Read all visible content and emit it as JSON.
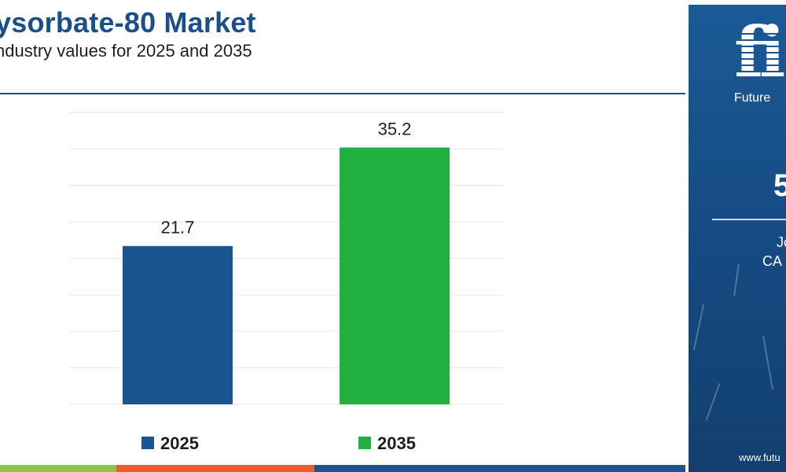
{
  "header": {
    "title": "ysorbate-80 Market",
    "subtitle": "ndustry values for 2025 and 2035"
  },
  "colors": {
    "title": "#1a4f8a",
    "bar_2025": "#1a5592",
    "bar_2035": "#22b041",
    "panel": "#1b5a97",
    "strip_a": "#8cc63f",
    "strip_b": "#f05a28",
    "strip_c": "#1a5592"
  },
  "chart_data": {
    "type": "bar",
    "title": "ysorbate-80 Market",
    "subtitle": "ndustry values for 2025 and 2035",
    "categories": [
      "2025",
      "2035"
    ],
    "values": [
      21.7,
      35.2
    ],
    "data_labels": [
      "21.7",
      "35.2"
    ],
    "ylim": [
      0,
      40
    ],
    "grid": true,
    "legend": "bottom",
    "legend_entries": [
      "2025",
      "2035"
    ],
    "xlabel": "",
    "ylabel": ""
  },
  "side_panel": {
    "logo_mark": "fi",
    "logo_text": "Future",
    "value": "5",
    "line1": "Jo",
    "line2": "CA",
    "url": "www.futu"
  }
}
